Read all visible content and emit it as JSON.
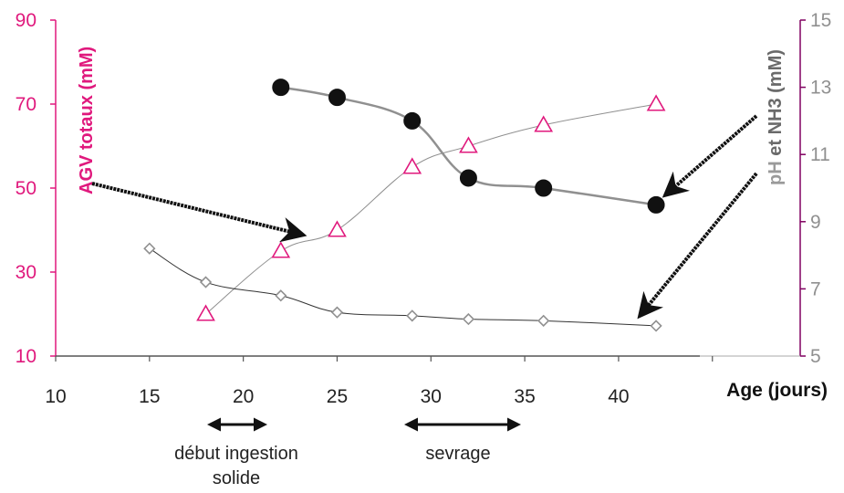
{
  "chart_data": {
    "type": "line",
    "xlabel": "Age (jours)",
    "ylabel_left": "AGV totaux (mM)",
    "ylabel_right": {
      "part1": "pH",
      "part2": " et NH3 (mM)"
    },
    "xlim": [
      10,
      45
    ],
    "ylim_left": [
      10,
      90
    ],
    "ylim_right": [
      5,
      15
    ],
    "xticks": [
      "10",
      "15",
      "20",
      "25",
      "30",
      "35",
      "40"
    ],
    "yticks_left": [
      "10",
      "30",
      "50",
      "70",
      "90"
    ],
    "yticks_right": [
      "5",
      "7",
      "9",
      "11",
      "13",
      "15"
    ],
    "grid": false,
    "series": [
      {
        "axis": "left",
        "marker": "triangle-open",
        "color": "#e0197d",
        "x": [
          18,
          22,
          25,
          29,
          32,
          36,
          42
        ],
        "y": [
          20,
          35,
          40,
          55,
          60,
          65,
          70
        ]
      },
      {
        "axis": "right",
        "marker": "circle-filled",
        "color": "#000000",
        "x": [
          22,
          25,
          29,
          32,
          36,
          42
        ],
        "y": [
          13.0,
          12.7,
          12.0,
          10.3,
          10.0,
          9.5
        ]
      },
      {
        "axis": "right",
        "marker": "diamond-open",
        "color": "#909090",
        "x": [
          15,
          18,
          22,
          25,
          29,
          32,
          36,
          42
        ],
        "y": [
          8.2,
          7.2,
          6.8,
          6.3,
          6.2,
          6.1,
          6.05,
          5.9
        ]
      }
    ],
    "annotations": [
      {
        "name": "debut-ingestion",
        "label_line1": "début ingestion",
        "label_line2": "solide",
        "span": [
          18.3,
          21.3
        ]
      },
      {
        "name": "sevrage",
        "label_line1": "sevrage",
        "span": [
          29.2,
          35.3
        ]
      }
    ],
    "colors": {
      "left_axis": "#e0197d",
      "right_axis": "#800060",
      "right_text": "#909090",
      "x_axis": "#555555"
    }
  }
}
